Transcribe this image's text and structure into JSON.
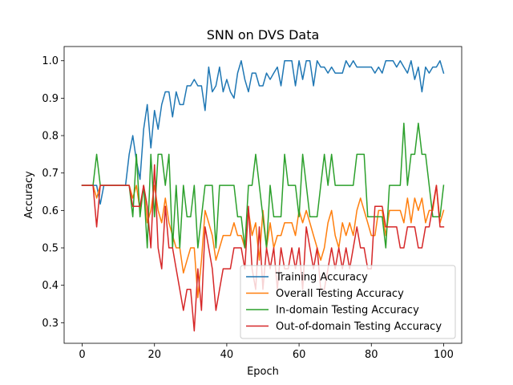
{
  "chart_data": {
    "type": "line",
    "title": "SNN on DVS Data",
    "xlabel": "Epoch",
    "ylabel": "Accuracy",
    "xlim": [
      -5,
      105
    ],
    "ylim": [
      0.245,
      1.038
    ],
    "xticks": [
      0,
      20,
      40,
      60,
      80,
      100
    ],
    "yticks": [
      0.3,
      0.4,
      0.5,
      0.6,
      0.7,
      0.8,
      0.9,
      1.0
    ],
    "xtick_labels": [
      "0",
      "20",
      "40",
      "60",
      "80",
      "100"
    ],
    "ytick_labels": [
      "0.3",
      "0.4",
      "0.5",
      "0.6",
      "0.7",
      "0.8",
      "0.9",
      "1.0"
    ],
    "grid": false,
    "legend_position": "lower-right",
    "series": [
      {
        "name": "Training Accuracy",
        "color": "#1f77b4",
        "values": [
          0.667,
          0.667,
          0.667,
          0.667,
          0.667,
          0.617,
          0.667,
          0.667,
          0.667,
          0.667,
          0.667,
          0.667,
          0.667,
          0.75,
          0.8,
          0.733,
          0.683,
          0.817,
          0.883,
          0.767,
          0.867,
          0.817,
          0.883,
          0.917,
          0.917,
          0.85,
          0.917,
          0.883,
          0.883,
          0.933,
          0.933,
          0.95,
          0.933,
          0.933,
          0.867,
          0.983,
          0.917,
          0.933,
          0.983,
          0.917,
          0.95,
          0.917,
          0.9,
          0.967,
          1.0,
          0.95,
          0.917,
          0.967,
          0.967,
          0.933,
          0.933,
          0.967,
          0.95,
          0.967,
          0.983,
          0.933,
          1.0,
          1.0,
          1.0,
          0.933,
          1.0,
          0.95,
          1.0,
          1.0,
          0.933,
          1.0,
          0.983,
          0.983,
          0.967,
          0.983,
          0.967,
          0.967,
          0.967,
          1.0,
          0.983,
          1.0,
          0.983,
          0.983,
          0.983,
          0.983,
          0.983,
          0.967,
          0.983,
          0.967,
          1.0,
          1.0,
          1.0,
          0.983,
          1.0,
          0.983,
          0.967,
          1.0,
          0.95,
          0.983,
          0.917,
          0.983,
          0.967,
          0.983,
          0.983,
          1.0,
          0.967
        ]
      },
      {
        "name": "Overall Testing Accuracy",
        "color": "#ff7f0e",
        "values": [
          0.667,
          0.667,
          0.667,
          0.667,
          0.633,
          0.667,
          0.667,
          0.667,
          0.667,
          0.667,
          0.667,
          0.667,
          0.667,
          0.667,
          0.633,
          0.667,
          0.6,
          0.667,
          0.567,
          0.6,
          0.667,
          0.6,
          0.567,
          0.633,
          0.567,
          0.533,
          0.5,
          0.5,
          0.433,
          0.467,
          0.5,
          0.5,
          0.367,
          0.467,
          0.6,
          0.567,
          0.533,
          0.467,
          0.5,
          0.533,
          0.533,
          0.533,
          0.567,
          0.533,
          0.533,
          0.5,
          0.6,
          0.533,
          0.567,
          0.467,
          0.6,
          0.5,
          0.567,
          0.5,
          0.533,
          0.533,
          0.567,
          0.567,
          0.567,
          0.533,
          0.6,
          0.567,
          0.6,
          0.567,
          0.533,
          0.5,
          0.467,
          0.5,
          0.567,
          0.6,
          0.533,
          0.5,
          0.567,
          0.533,
          0.567,
          0.533,
          0.6,
          0.633,
          0.6,
          0.567,
          0.533,
          0.533,
          0.6,
          0.6,
          0.533,
          0.6,
          0.6,
          0.6,
          0.6,
          0.567,
          0.633,
          0.567,
          0.633,
          0.6,
          0.633,
          0.567,
          0.6,
          0.6,
          0.667,
          0.567,
          0.6
        ]
      },
      {
        "name": "In-domain Testing Accuracy",
        "color": "#2ca02c",
        "values": [
          0.667,
          0.667,
          0.667,
          0.667,
          0.75,
          0.667,
          0.667,
          0.667,
          0.667,
          0.667,
          0.667,
          0.667,
          0.667,
          0.667,
          0.583,
          0.75,
          0.583,
          0.667,
          0.5,
          0.75,
          0.583,
          0.75,
          0.75,
          0.667,
          0.75,
          0.5,
          0.667,
          0.5,
          0.667,
          0.583,
          0.583,
          0.667,
          0.5,
          0.583,
          0.667,
          0.667,
          0.667,
          0.5,
          0.667,
          0.667,
          0.667,
          0.667,
          0.667,
          0.583,
          0.583,
          0.5,
          0.667,
          0.667,
          0.75,
          0.667,
          0.583,
          0.5,
          0.667,
          0.583,
          0.583,
          0.583,
          0.75,
          0.667,
          0.667,
          0.667,
          0.583,
          0.75,
          0.667,
          0.583,
          0.583,
          0.583,
          0.667,
          0.75,
          0.667,
          0.75,
          0.667,
          0.667,
          0.667,
          0.667,
          0.667,
          0.667,
          0.75,
          0.75,
          0.75,
          0.583,
          0.583,
          0.583,
          0.583,
          0.583,
          0.5,
          0.667,
          0.667,
          0.667,
          0.667,
          0.833,
          0.667,
          0.75,
          0.75,
          0.833,
          0.75,
          0.75,
          0.667,
          0.583,
          0.583,
          0.583,
          0.667
        ]
      },
      {
        "name": "Out-of-domain Testing Accuracy",
        "color": "#d62728",
        "values": [
          0.667,
          0.667,
          0.667,
          0.667,
          0.556,
          0.667,
          0.667,
          0.667,
          0.667,
          0.667,
          0.667,
          0.667,
          0.667,
          0.667,
          0.611,
          0.611,
          0.611,
          0.667,
          0.611,
          0.5,
          0.722,
          0.5,
          0.444,
          0.611,
          0.5,
          0.5,
          0.444,
          0.389,
          0.333,
          0.389,
          0.389,
          0.278,
          0.444,
          0.333,
          0.556,
          0.5,
          0.444,
          0.333,
          0.389,
          0.444,
          0.444,
          0.444,
          0.5,
          0.5,
          0.5,
          0.444,
          0.611,
          0.444,
          0.389,
          0.556,
          0.389,
          0.5,
          0.444,
          0.5,
          0.389,
          0.5,
          0.444,
          0.444,
          0.5,
          0.444,
          0.5,
          0.389,
          0.556,
          0.5,
          0.444,
          0.5,
          0.389,
          0.389,
          0.444,
          0.5,
          0.444,
          0.5,
          0.444,
          0.5,
          0.444,
          0.5,
          0.556,
          0.5,
          0.5,
          0.444,
          0.444,
          0.611,
          0.611,
          0.611,
          0.556,
          0.556,
          0.556,
          0.556,
          0.5,
          0.5,
          0.556,
          0.556,
          0.556,
          0.5,
          0.5,
          0.556,
          0.556,
          0.611,
          0.667,
          0.556,
          0.556
        ]
      }
    ]
  }
}
